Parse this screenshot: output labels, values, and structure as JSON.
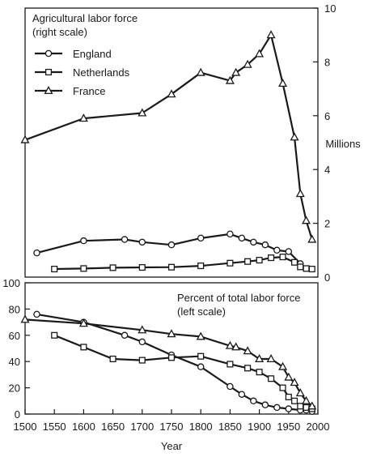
{
  "chart_data": [
    {
      "type": "line",
      "title": "Agricultural labor force",
      "subtitle": "(right scale)",
      "ylabel": "Millions",
      "y_axis_side": "right",
      "ylim": [
        0,
        10
      ],
      "y_ticks": [
        0,
        2,
        4,
        6,
        8,
        10
      ],
      "xlim": [
        1500,
        2000
      ],
      "legend_position": "top-left",
      "series": [
        {
          "name": "England",
          "marker": "circle",
          "x": [
            1520,
            1600,
            1670,
            1700,
            1750,
            1800,
            1850,
            1870,
            1890,
            1910,
            1930,
            1950,
            1970
          ],
          "y": [
            0.9,
            1.35,
            1.4,
            1.3,
            1.2,
            1.45,
            1.6,
            1.45,
            1.3,
            1.2,
            1.0,
            0.95,
            0.5
          ]
        },
        {
          "name": "Netherlands",
          "marker": "square",
          "x": [
            1550,
            1600,
            1650,
            1700,
            1750,
            1800,
            1850,
            1880,
            1900,
            1920,
            1940,
            1960,
            1970,
            1980,
            1990
          ],
          "y": [
            0.3,
            0.32,
            0.35,
            0.36,
            0.37,
            0.42,
            0.52,
            0.58,
            0.63,
            0.72,
            0.75,
            0.55,
            0.38,
            0.32,
            0.3
          ]
        },
        {
          "name": "France",
          "marker": "triangle",
          "x": [
            1500,
            1600,
            1700,
            1750,
            1800,
            1850,
            1860,
            1880,
            1900,
            1920,
            1940,
            1960,
            1970,
            1980,
            1990
          ],
          "y": [
            5.1,
            5.9,
            6.1,
            6.8,
            7.6,
            7.3,
            7.6,
            7.9,
            8.3,
            9.0,
            7.2,
            5.2,
            3.1,
            2.1,
            1.4
          ]
        }
      ]
    },
    {
      "type": "line",
      "title": "Percent of total labor force",
      "subtitle": "(left scale)",
      "xlabel": "Year",
      "y_axis_side": "left",
      "ylim": [
        0,
        100
      ],
      "y_ticks": [
        0,
        20,
        40,
        60,
        80,
        100
      ],
      "xlim": [
        1500,
        2000
      ],
      "x_ticks": [
        1500,
        1550,
        1600,
        1650,
        1700,
        1750,
        1800,
        1850,
        1900,
        1950,
        2000
      ],
      "series": [
        {
          "name": "England",
          "marker": "circle",
          "x": [
            1520,
            1600,
            1670,
            1700,
            1750,
            1800,
            1850,
            1870,
            1890,
            1910,
            1930,
            1950,
            1970,
            1980,
            1990
          ],
          "y": [
            76,
            70,
            60,
            55,
            45,
            36,
            21,
            15,
            10,
            7,
            5,
            4,
            3,
            3,
            2
          ]
        },
        {
          "name": "Netherlands",
          "marker": "square",
          "x": [
            1550,
            1600,
            1650,
            1700,
            1750,
            1800,
            1850,
            1880,
            1900,
            1920,
            1940,
            1950,
            1960,
            1970,
            1980,
            1990
          ],
          "y": [
            60,
            51,
            42,
            41,
            43,
            44,
            38,
            35,
            32,
            27,
            20,
            13,
            10,
            6,
            5,
            4
          ]
        },
        {
          "name": "France",
          "marker": "triangle",
          "x": [
            1500,
            1600,
            1700,
            1750,
            1800,
            1850,
            1860,
            1880,
            1900,
            1920,
            1940,
            1950,
            1960,
            1970,
            1980,
            1990
          ],
          "y": [
            72,
            69,
            64,
            61,
            59,
            52,
            51,
            48,
            42,
            42,
            36,
            28,
            24,
            16,
            10,
            6
          ]
        }
      ]
    }
  ]
}
